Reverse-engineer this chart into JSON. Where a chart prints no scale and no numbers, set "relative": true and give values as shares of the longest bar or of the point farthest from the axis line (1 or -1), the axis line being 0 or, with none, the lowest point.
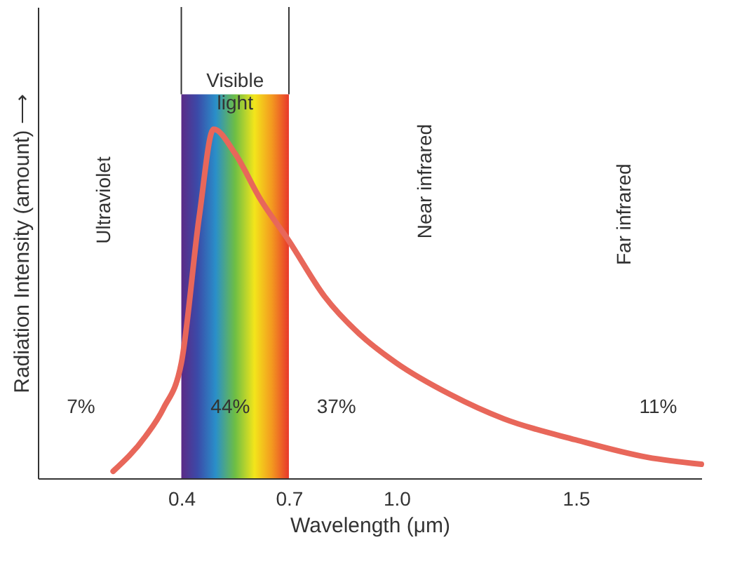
{
  "chart_data": {
    "type": "line",
    "relative": true,
    "xlabel": "Wavelength (μm)",
    "ylabel": "Radiation Intensity (amount) ⟶",
    "xlim": [
      0,
      1.85
    ],
    "xticks": [
      0.4,
      0.7,
      {
        "value": 1,
        "label": "1.0"
      },
      1.5
    ],
    "series": [
      {
        "color": "#e8675a",
        "x": [
          0.21,
          0.3,
          0.35,
          0.4,
          0.45,
          0.49,
          0.55,
          0.62,
          0.7,
          0.8,
          0.9,
          1.0,
          1.15,
          1.3,
          1.5,
          1.7,
          1.85
        ],
        "values": [
          0.02,
          0.12,
          0.2,
          0.33,
          0.75,
          1.0,
          0.93,
          0.8,
          0.68,
          0.52,
          0.41,
          0.33,
          0.24,
          0.17,
          0.11,
          0.06,
          0.04
        ]
      }
    ],
    "bands": [
      {
        "axis": "x",
        "from": 0.4,
        "to": 0.7,
        "label": "Visible light"
      }
    ],
    "annotations": [
      "Ultraviolet",
      "Near infrared",
      "Far infrared",
      "7%",
      "44%",
      "37%",
      "11%"
    ],
    "grid": false,
    "marker": "none",
    "line_style": "solid"
  }
}
